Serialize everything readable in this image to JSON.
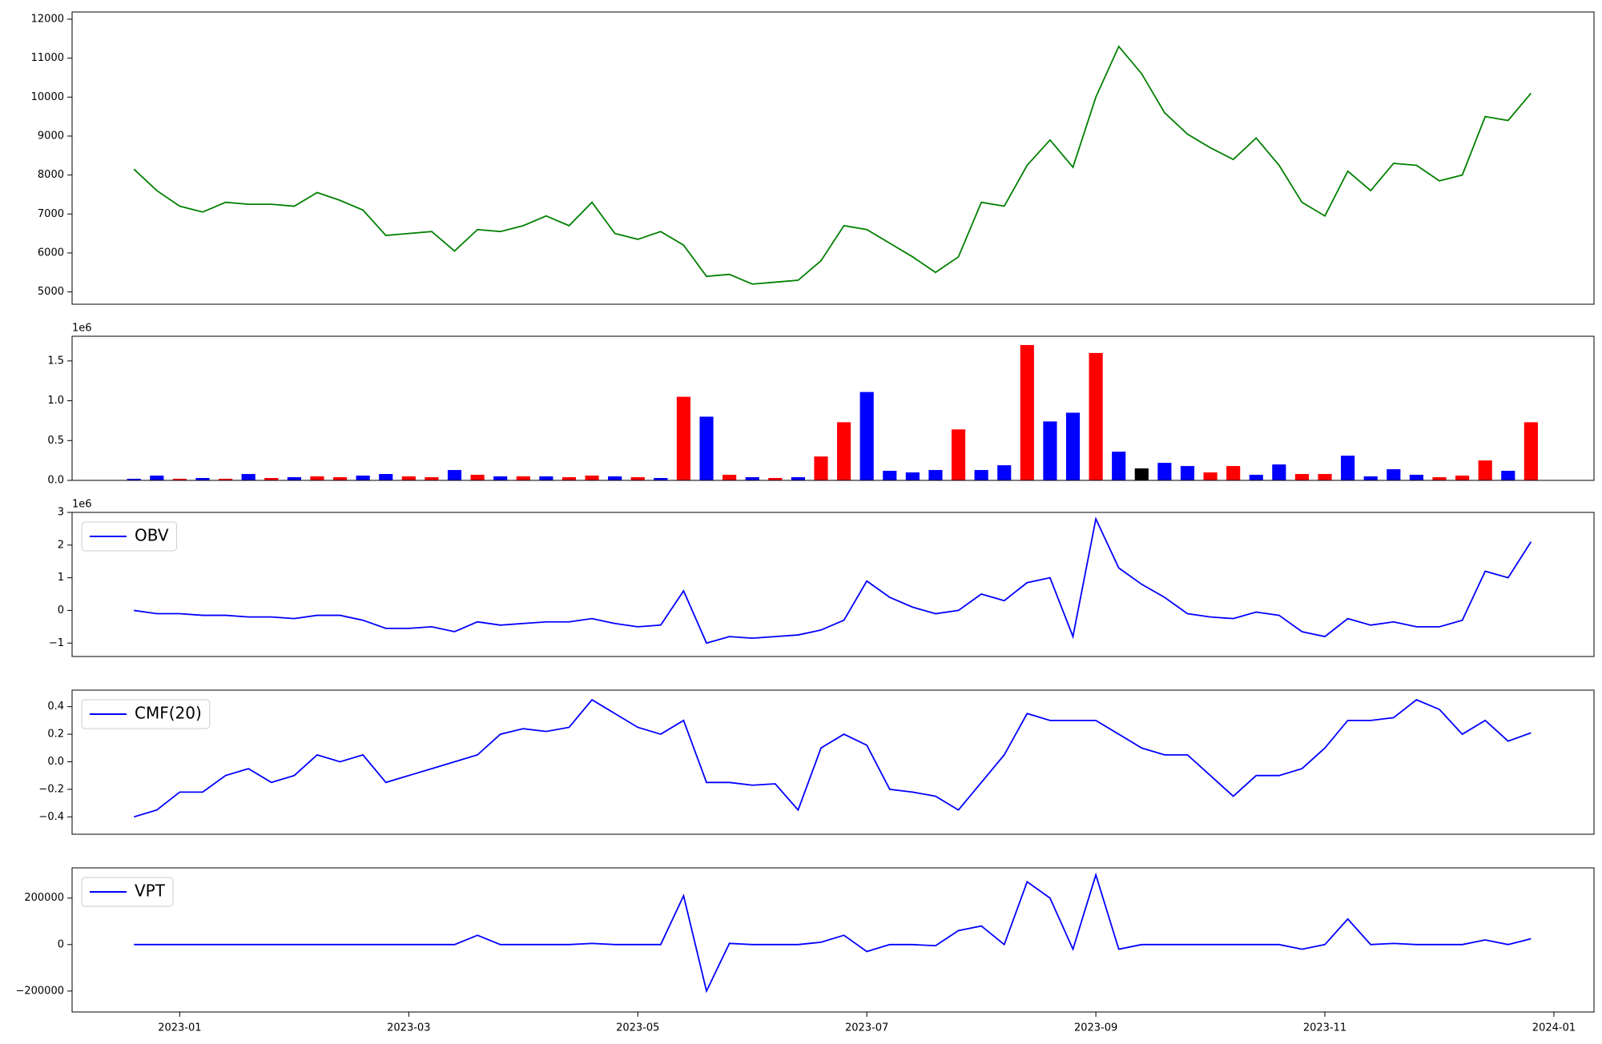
{
  "chart_data": [
    {
      "type": "line",
      "color": "green",
      "xlim": [
        -0.94,
        12.35
      ],
      "ylim": [
        4684,
        12184
      ],
      "yticks": [
        5000,
        6000,
        7000,
        8000,
        9000,
        10000,
        11000,
        12000
      ],
      "x": [
        -0.4,
        -0.2,
        0,
        0.2,
        0.4,
        0.6,
        0.8,
        1,
        1.2,
        1.4,
        1.6,
        1.8,
        2,
        2.2,
        2.4,
        2.6,
        2.8,
        3,
        3.2,
        3.4,
        3.6,
        3.8,
        4,
        4.2,
        4.4,
        4.6,
        4.8,
        5,
        5.2,
        5.4,
        5.6,
        5.8,
        6,
        6.2,
        6.4,
        6.6,
        6.8,
        7,
        7.2,
        7.4,
        7.6,
        7.8,
        8,
        8.2,
        8.4,
        8.6,
        8.8,
        9,
        9.2,
        9.4,
        9.6,
        9.8,
        10,
        10.2,
        10.4,
        10.6,
        10.8,
        11,
        11.2,
        11.4,
        11.6,
        11.8
      ],
      "values": [
        8150,
        7600,
        7200,
        7050,
        7300,
        7250,
        7250,
        7200,
        7550,
        7350,
        7100,
        6450,
        6500,
        6550,
        6050,
        6600,
        6550,
        6700,
        6950,
        6700,
        7300,
        6500,
        6350,
        6550,
        6200,
        5400,
        5450,
        5200,
        5250,
        5300,
        5800,
        6700,
        6600,
        6250,
        5900,
        5500,
        5900,
        7300,
        7200,
        8250,
        8900,
        8200,
        10000,
        11300,
        10600,
        9600,
        9050,
        8700,
        8400,
        8950,
        8250,
        7300,
        6950,
        8100,
        7600,
        8300,
        8250,
        7850,
        8000,
        9500,
        9400,
        10100
      ]
    },
    {
      "type": "bar",
      "xlim": [
        -0.94,
        12.35
      ],
      "ylim": [
        0,
        1810000
      ],
      "y_offset_label": "1e6",
      "yticks": [
        {
          "value": 0,
          "label": "0.0"
        },
        {
          "value": 500000,
          "label": "0.5"
        },
        {
          "value": 1000000,
          "label": "1.0"
        },
        {
          "value": 1500000,
          "label": "1.5"
        }
      ],
      "x": [
        -0.4,
        -0.2,
        0,
        0.2,
        0.4,
        0.6,
        0.8,
        1,
        1.2,
        1.4,
        1.6,
        1.8,
        2,
        2.2,
        2.4,
        2.6,
        2.8,
        3,
        3.2,
        3.4,
        3.6,
        3.8,
        4,
        4.2,
        4.4,
        4.6,
        4.8,
        5,
        5.2,
        5.4,
        5.6,
        5.8,
        6,
        6.2,
        6.4,
        6.6,
        6.8,
        7,
        7.2,
        7.4,
        7.6,
        7.8,
        8,
        8.2,
        8.4,
        8.6,
        8.8,
        9,
        9.2,
        9.4,
        9.6,
        9.8,
        10,
        10.2,
        10.4,
        10.6,
        10.8,
        11,
        11.2,
        11.4,
        11.6,
        11.8
      ],
      "values": [
        20000,
        60000,
        20000,
        30000,
        20000,
        80000,
        30000,
        40000,
        50000,
        40000,
        60000,
        80000,
        50000,
        40000,
        130000,
        70000,
        50000,
        50000,
        50000,
        40000,
        60000,
        50000,
        40000,
        30000,
        1050000,
        800000,
        70000,
        40000,
        30000,
        40000,
        300000,
        730000,
        1110000,
        120000,
        100000,
        130000,
        640000,
        130000,
        190000,
        1700000,
        740000,
        850000,
        1600000,
        360000,
        150000,
        220000,
        180000,
        100000,
        180000,
        70000,
        200000,
        80000,
        80000,
        310000,
        50000,
        140000,
        70000,
        40000,
        60000,
        250000,
        120000,
        730000
      ],
      "colors": [
        "blue",
        "blue",
        "red",
        "blue",
        "red",
        "blue",
        "red",
        "blue",
        "red",
        "red",
        "blue",
        "blue",
        "red",
        "red",
        "blue",
        "red",
        "blue",
        "red",
        "blue",
        "red",
        "red",
        "blue",
        "red",
        "blue",
        "red",
        "blue",
        "red",
        "blue",
        "red",
        "blue",
        "red",
        "red",
        "blue",
        "blue",
        "blue",
        "blue",
        "red",
        "blue",
        "blue",
        "red",
        "blue",
        "blue",
        "red",
        "blue",
        "black",
        "blue",
        "blue",
        "red",
        "red",
        "blue",
        "blue",
        "red",
        "red",
        "blue",
        "blue",
        "blue",
        "blue",
        "red",
        "red",
        "red",
        "blue",
        "red"
      ]
    },
    {
      "type": "line",
      "xlim": [
        -0.94,
        12.35
      ],
      "ylim": [
        -1410000,
        3000000
      ],
      "y_offset_label": "1e6",
      "legend": "upper left",
      "yticks": [
        {
          "value": -1000000,
          "label": "−1"
        },
        {
          "value": 0,
          "label": "0"
        },
        {
          "value": 1000000,
          "label": "1"
        },
        {
          "value": 2000000,
          "label": "2"
        },
        {
          "value": 3000000,
          "label": "3"
        }
      ],
      "x": [
        -0.4,
        -0.2,
        0,
        0.2,
        0.4,
        0.6,
        0.8,
        1,
        1.2,
        1.4,
        1.6,
        1.8,
        2,
        2.2,
        2.4,
        2.6,
        2.8,
        3,
        3.2,
        3.4,
        3.6,
        3.8,
        4,
        4.2,
        4.4,
        4.6,
        4.8,
        5,
        5.2,
        5.4,
        5.6,
        5.8,
        6,
        6.2,
        6.4,
        6.6,
        6.8,
        7,
        7.2,
        7.4,
        7.6,
        7.8,
        8,
        8.2,
        8.4,
        8.6,
        8.8,
        9,
        9.2,
        9.4,
        9.6,
        9.8,
        10,
        10.2,
        10.4,
        10.6,
        10.8,
        11,
        11.2,
        11.4,
        11.6,
        11.8
      ],
      "series": [
        {
          "name": "OBV",
          "color": "blue",
          "values": [
            0,
            -100000,
            -100000,
            -150000,
            -150000,
            -200000,
            -200000,
            -250000,
            -150000,
            -150000,
            -300000,
            -550000,
            -550000,
            -500000,
            -650000,
            -350000,
            -450000,
            -400000,
            -350000,
            -350000,
            -250000,
            -400000,
            -500000,
            -450000,
            600000,
            -1000000,
            -800000,
            -850000,
            -800000,
            -750000,
            -600000,
            -300000,
            900000,
            400000,
            100000,
            -100000,
            0,
            500000,
            300000,
            850000,
            1000000,
            -800000,
            2800000,
            1300000,
            800000,
            400000,
            -100000,
            -200000,
            -250000,
            -50000,
            -150000,
            -650000,
            -800000,
            -250000,
            -450000,
            -350000,
            -500000,
            -500000,
            -300000,
            1200000,
            1000000,
            2100000
          ]
        }
      ]
    },
    {
      "type": "line",
      "xlim": [
        -0.94,
        12.35
      ],
      "ylim": [
        -0.526,
        0.52
      ],
      "legend": "upper left",
      "yticks": [
        {
          "value": -0.4,
          "label": "−0.4"
        },
        {
          "value": -0.2,
          "label": "−0.2"
        },
        {
          "value": 0,
          "label": "0.0"
        },
        0.2,
        0.4
      ],
      "x": [
        -0.4,
        -0.2,
        0,
        0.2,
        0.4,
        0.6,
        0.8,
        1,
        1.2,
        1.4,
        1.6,
        1.8,
        2,
        2.2,
        2.4,
        2.6,
        2.8,
        3,
        3.2,
        3.4,
        3.6,
        3.8,
        4,
        4.2,
        4.4,
        4.6,
        4.8,
        5,
        5.2,
        5.4,
        5.6,
        5.8,
        6,
        6.2,
        6.4,
        6.6,
        6.8,
        7,
        7.2,
        7.4,
        7.6,
        7.8,
        8,
        8.2,
        8.4,
        8.6,
        8.8,
        9,
        9.2,
        9.4,
        9.6,
        9.8,
        10,
        10.2,
        10.4,
        10.6,
        10.8,
        11,
        11.2,
        11.4,
        11.6,
        11.8
      ],
      "series": [
        {
          "name": "CMF(20)",
          "color": "blue",
          "values": [
            -0.4,
            -0.35,
            -0.22,
            -0.22,
            -0.1,
            -0.05,
            -0.15,
            -0.1,
            0.05,
            0,
            0.05,
            -0.15,
            -0.1,
            -0.05,
            0,
            0.05,
            0.2,
            0.24,
            0.22,
            0.25,
            0.45,
            0.35,
            0.25,
            0.2,
            0.3,
            -0.15,
            -0.15,
            -0.17,
            -0.16,
            -0.35,
            0.1,
            0.2,
            0.12,
            -0.2,
            -0.22,
            -0.25,
            -0.35,
            -0.15,
            0.05,
            0.35,
            0.3,
            0.3,
            0.3,
            0.2,
            0.1,
            0.05,
            0.05,
            -0.1,
            -0.25,
            -0.1,
            -0.1,
            -0.05,
            0.1,
            0.3,
            0.3,
            0.32,
            0.45,
            0.38,
            0.2,
            0.3,
            0.15,
            0.21
          ]
        }
      ]
    },
    {
      "type": "line",
      "xlim": [
        -0.94,
        12.35
      ],
      "ylim": [
        -290000,
        330000
      ],
      "legend": "upper left",
      "yticks": [
        {
          "value": -200000,
          "label": "−200000"
        },
        0,
        200000
      ],
      "xticks": [
        {
          "value": 0,
          "label": "2023-01"
        },
        {
          "value": 2,
          "label": "2023-03"
        },
        {
          "value": 4,
          "label": "2023-05"
        },
        {
          "value": 6,
          "label": "2023-07"
        },
        {
          "value": 8,
          "label": "2023-09"
        },
        {
          "value": 10,
          "label": "2023-11"
        },
        {
          "value": 12,
          "label": "2024-01"
        }
      ],
      "x": [
        -0.4,
        -0.2,
        0,
        0.2,
        0.4,
        0.6,
        0.8,
        1,
        1.2,
        1.4,
        1.6,
        1.8,
        2,
        2.2,
        2.4,
        2.6,
        2.8,
        3,
        3.2,
        3.4,
        3.6,
        3.8,
        4,
        4.2,
        4.4,
        4.6,
        4.8,
        5,
        5.2,
        5.4,
        5.6,
        5.8,
        6,
        6.2,
        6.4,
        6.6,
        6.8,
        7,
        7.2,
        7.4,
        7.6,
        7.8,
        8,
        8.2,
        8.4,
        8.6,
        8.8,
        9,
        9.2,
        9.4,
        9.6,
        9.8,
        10,
        10.2,
        10.4,
        10.6,
        10.8,
        11,
        11.2,
        11.4,
        11.6,
        11.8
      ],
      "series": [
        {
          "name": "VPT",
          "color": "blue",
          "values": [
            0,
            0,
            0,
            0,
            0,
            0,
            0,
            0,
            0,
            0,
            0,
            0,
            0,
            0,
            0,
            40000,
            0,
            0,
            0,
            0,
            5000,
            0,
            0,
            0,
            210000,
            -200000,
            5000,
            0,
            0,
            0,
            10000,
            40000,
            -30000,
            0,
            0,
            -5000,
            60000,
            80000,
            0,
            270000,
            200000,
            -20000,
            300000,
            -20000,
            0,
            0,
            0,
            0,
            0,
            0,
            0,
            -20000,
            0,
            110000,
            0,
            5000,
            0,
            0,
            0,
            20000,
            0,
            25000
          ]
        }
      ]
    }
  ]
}
